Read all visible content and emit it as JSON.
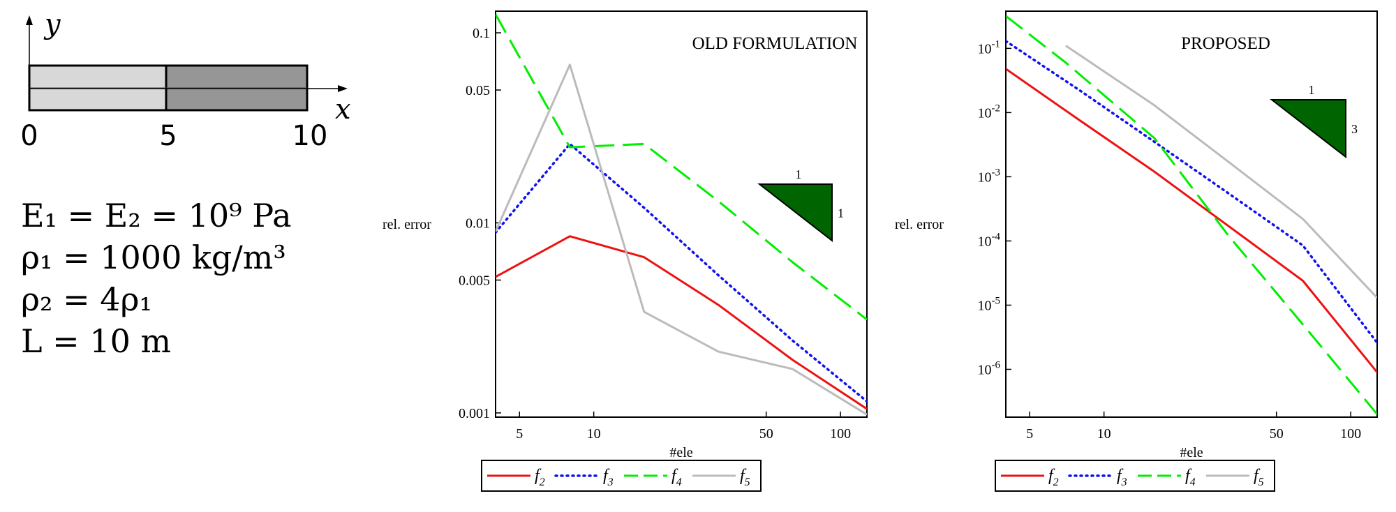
{
  "bar": {
    "x_label": "x",
    "y_label": "y",
    "ticks": [
      "0",
      "5",
      "10"
    ]
  },
  "params": {
    "line1": "E₁ = E₂ = 10⁹ Pa",
    "line2": "ρ₁ = 1000 kg/m³",
    "line3": "ρ₂ = 4ρ₁",
    "line4": "L = 10 m"
  },
  "colors": {
    "light_gray": "#d8d8d8",
    "dark_gray": "#969696",
    "triangle": "#006400",
    "f2": "#ee1111",
    "f3": "#1111ee",
    "f4": "#00ee00",
    "f5": "#bbbbbb"
  },
  "chart_data": [
    {
      "type": "line",
      "title": "OLD FORMULATION",
      "xlabel": "#ele",
      "ylabel": "rel. error",
      "xscale": "log",
      "yscale": "log",
      "xlim": [
        4,
        128
      ],
      "ylim": [
        0.00095,
        0.13
      ],
      "xticks": [
        5,
        10,
        50,
        100
      ],
      "xtick_labels": [
        "5",
        "10",
        "50",
        "100"
      ],
      "yticks": [
        0.001,
        0.005,
        0.01,
        0.05,
        0.1
      ],
      "ytick_labels": [
        "0.001",
        "0.005",
        "0.01",
        "0.05",
        "0.1"
      ],
      "slope_triangle": {
        "run": "1",
        "rise": "1"
      },
      "legend": [
        "2",
        "3",
        "4",
        "5"
      ],
      "series": [
        {
          "name": "f2",
          "x": [
            4,
            8,
            16,
            32,
            64,
            128
          ],
          "y": [
            0.0052,
            0.0085,
            0.0066,
            0.0037,
            0.0019,
            0.00105
          ]
        },
        {
          "name": "f3",
          "x": [
            4,
            8,
            16,
            32,
            64,
            128
          ],
          "y": [
            0.0089,
            0.026,
            0.012,
            0.0053,
            0.0024,
            0.00115
          ]
        },
        {
          "name": "f4",
          "x": [
            4,
            8,
            16,
            32,
            64,
            128
          ],
          "y": [
            0.125,
            0.025,
            0.026,
            0.013,
            0.0062,
            0.0031
          ]
        },
        {
          "name": "f5",
          "x": [
            4,
            8,
            16,
            32,
            64,
            128
          ],
          "y": [
            0.009,
            0.068,
            0.0034,
            0.0021,
            0.0017,
            0.00098
          ]
        }
      ]
    },
    {
      "type": "line",
      "title": "PROPOSED",
      "xlabel": "#ele",
      "ylabel": "rel. error",
      "xscale": "log",
      "yscale": "log",
      "xlim": [
        4,
        128
      ],
      "ylim": [
        1.8e-07,
        0.38
      ],
      "xticks": [
        5,
        10,
        50,
        100
      ],
      "xtick_labels": [
        "5",
        "10",
        "50",
        "100"
      ],
      "yticks": [
        1e-06,
        1e-05,
        0.0001,
        0.001,
        0.01,
        0.1
      ],
      "ytick_exponents": [
        "-6",
        "-5",
        "-4",
        "-3",
        "-2",
        "-1"
      ],
      "ytick_base": "10",
      "slope_triangle": {
        "run": "1",
        "rise": "3"
      },
      "legend": [
        "2",
        "3",
        "4",
        "5"
      ],
      "series": [
        {
          "name": "f2",
          "x": [
            4,
            8,
            16,
            32,
            64,
            128
          ],
          "y": [
            0.048,
            0.0075,
            0.0012,
            0.00017,
            2.4e-05,
            9e-07
          ]
        },
        {
          "name": "f3",
          "x": [
            4,
            8,
            16,
            32,
            64,
            128
          ],
          "y": [
            0.13,
            0.022,
            0.0035,
            0.00055,
            8.5e-05,
            2.6e-06
          ]
        },
        {
          "name": "f4",
          "x": [
            4,
            7,
            16,
            32,
            64,
            128
          ],
          "y": [
            0.32,
            0.06,
            0.004,
            0.00012,
            5e-06,
            2e-07
          ]
        },
        {
          "name": "f5",
          "x": [
            7,
            16,
            32,
            64,
            128
          ],
          "y": [
            0.11,
            0.013,
            0.0017,
            0.00022,
            1.3e-05
          ]
        }
      ]
    }
  ]
}
